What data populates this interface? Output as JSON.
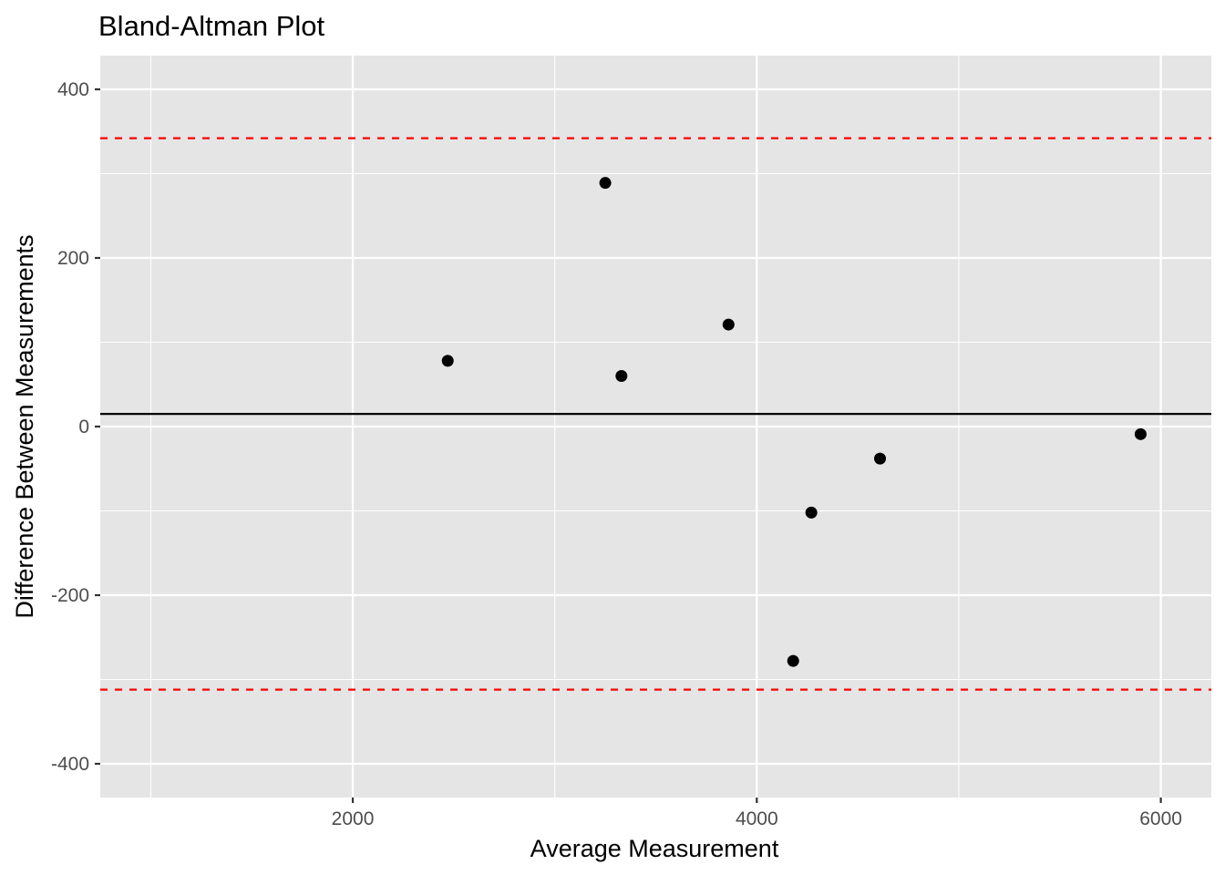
{
  "chart_data": {
    "type": "scatter",
    "title": "Bland-Altman Plot",
    "xlabel": "Average Measurement",
    "ylabel": "Difference Between Measurements",
    "xlim": [
      750,
      6250
    ],
    "ylim": [
      -440,
      440
    ],
    "x_ticks": [
      2000,
      4000,
      6000
    ],
    "x_tick_labels": [
      "2000",
      "4000",
      "6000"
    ],
    "x_minor_ticks": [
      1000,
      3000,
      5000
    ],
    "y_ticks": [
      -400,
      -200,
      0,
      200,
      400
    ],
    "y_tick_labels": [
      "-400",
      "-200",
      "0",
      "200",
      "400"
    ],
    "y_minor_ticks": [
      -300,
      -100,
      100,
      300
    ],
    "grid": true,
    "background": "#e5e5e5",
    "points": [
      {
        "x": 2470,
        "y": 78
      },
      {
        "x": 3250,
        "y": 289
      },
      {
        "x": 3330,
        "y": 60
      },
      {
        "x": 3860,
        "y": 121
      },
      {
        "x": 4180,
        "y": -278
      },
      {
        "x": 4270,
        "y": -102
      },
      {
        "x": 4610,
        "y": -38
      },
      {
        "x": 5900,
        "y": -9
      }
    ],
    "point_color": "#000000",
    "reference_lines": [
      {
        "y": 15,
        "style": "solid",
        "color": "#000000"
      },
      {
        "y": 342,
        "style": "dashed",
        "color": "#ff0000"
      },
      {
        "y": -312,
        "style": "dashed",
        "color": "#ff0000"
      }
    ]
  }
}
